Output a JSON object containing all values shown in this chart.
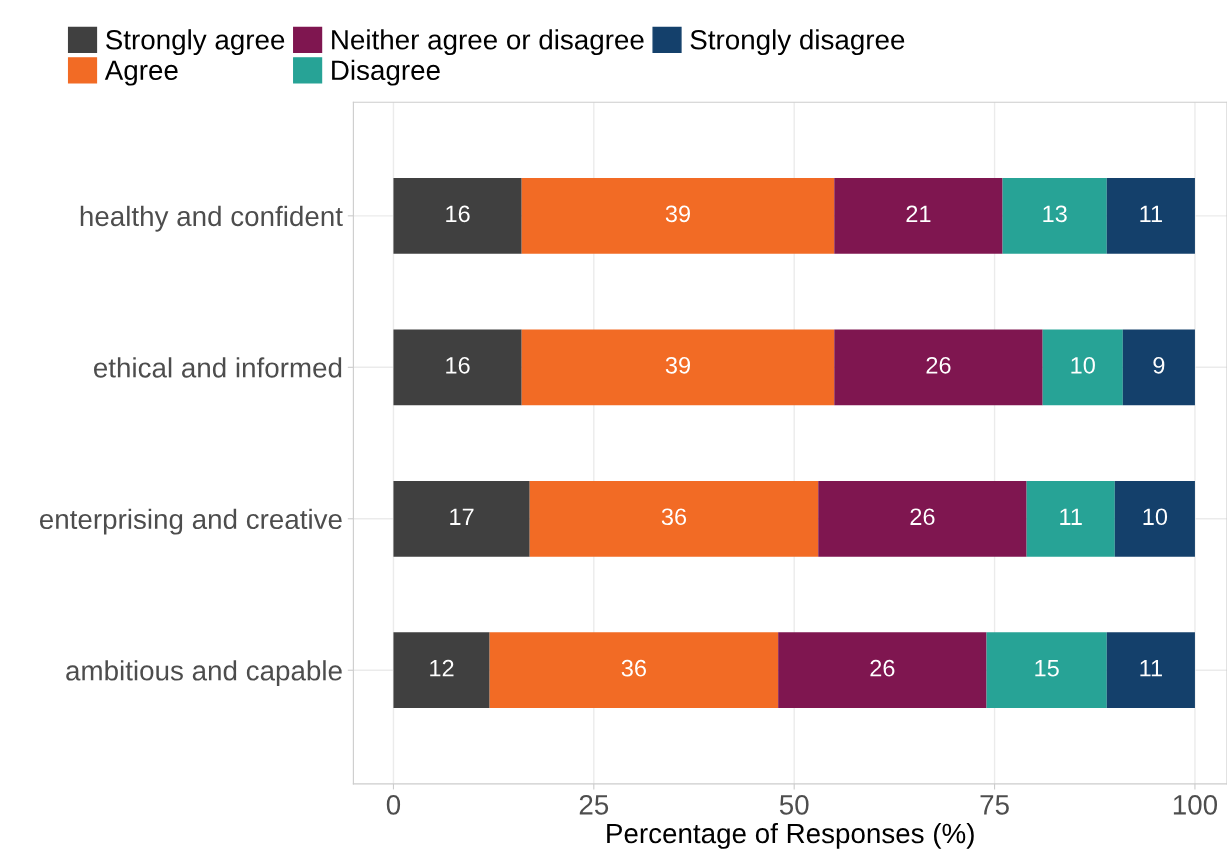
{
  "chart_data": {
    "type": "bar",
    "orientation": "horizontal",
    "stacked": true,
    "xlabel": "Percentage of Responses (%)",
    "categories": [
      "healthy and confident",
      "ethical and informed",
      "enterprising and creative",
      "ambitious and capable"
    ],
    "series": [
      {
        "name": "Strongly agree",
        "color": "#404040",
        "values": [
          16,
          16,
          17,
          12
        ]
      },
      {
        "name": "Agree",
        "color": "#f26b25",
        "values": [
          39,
          39,
          36,
          36
        ]
      },
      {
        "name": "Neither agree or disagree",
        "color": "#7f1650",
        "values": [
          21,
          26,
          26,
          26
        ]
      },
      {
        "name": "Disagree",
        "color": "#27a396",
        "values": [
          13,
          10,
          11,
          15
        ]
      },
      {
        "name": "Strongly disagree",
        "color": "#14406b",
        "values": [
          11,
          9,
          10,
          11
        ]
      }
    ],
    "xlim": [
      -5,
      104
    ],
    "xticks": [
      0,
      25,
      50,
      75,
      100
    ],
    "grid": true,
    "legend": "top",
    "data_labels": true
  }
}
